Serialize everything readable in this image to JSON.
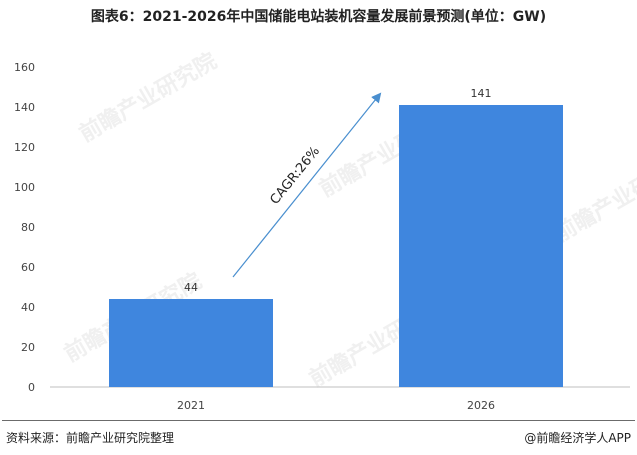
{
  "title": "图表6：2021-2026年中国储能电站装机容量发展前景预测(单位：GW)",
  "watermark": "前瞻产业研究院",
  "annotation": "CAGR:26%",
  "footer": {
    "source": "资料来源：前瞻产业研究院整理",
    "brand": "@前瞻经济学人APP"
  },
  "colors": {
    "bar": "#3f86de",
    "arrow": "#4a8fcf",
    "axis": "#bfbfbf"
  },
  "chart_data": {
    "type": "bar",
    "categories": [
      "2021",
      "2026"
    ],
    "values": [
      44,
      141
    ],
    "data_labels": [
      "44",
      "141"
    ],
    "yticks": [
      0,
      20,
      40,
      60,
      80,
      100,
      120,
      140,
      160
    ],
    "ylim": [
      0,
      160
    ],
    "grid": false
  }
}
